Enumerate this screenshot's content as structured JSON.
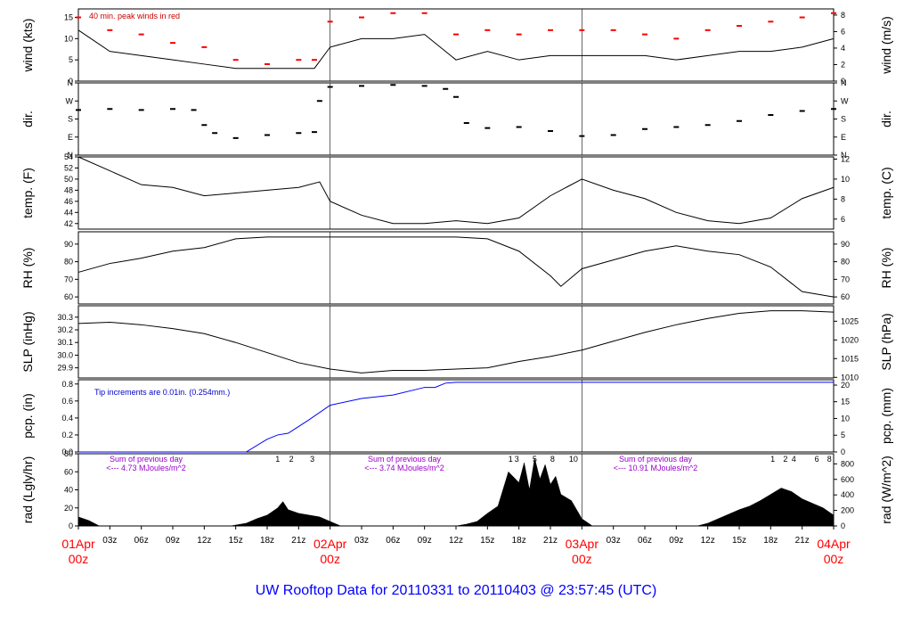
{
  "chart_data": {
    "type": "line",
    "title": "UW Rooftop Data for 20110331  to  20110403 @ 23:57:45  (UTC)",
    "x_range": [
      "2011-04-01T00:00Z",
      "2011-04-04T00:00Z"
    ],
    "x_hour_ticks": [
      "03z",
      "06z",
      "09z",
      "12z",
      "15z",
      "18z",
      "21z",
      "03z",
      "06z",
      "09z",
      "12z",
      "15z",
      "18z",
      "21z",
      "03z",
      "06z",
      "09z",
      "12z",
      "15z",
      "18z",
      "21z"
    ],
    "x_day_labels": [
      {
        "date": "01Apr",
        "time": "00z"
      },
      {
        "date": "02Apr",
        "time": "00z"
      },
      {
        "date": "03Apr",
        "time": "00z"
      },
      {
        "date": "04Apr",
        "time": "00z"
      }
    ],
    "panels": [
      {
        "id": "wind",
        "ylabel_left": "wind (kts)",
        "ylabel_right": "wind (m/s)",
        "ylim": [
          0,
          17
        ],
        "left_ticks": [
          "0",
          "5",
          "10",
          "15"
        ],
        "left_tick_values": [
          0,
          5,
          10,
          15
        ],
        "right_ticks": [
          "0",
          "2",
          "4",
          "6",
          "8"
        ],
        "right_tick_values_kts": [
          0,
          3.89,
          7.78,
          11.66,
          15.55
        ],
        "annotation": "40 min. peak winds in red",
        "series": [
          {
            "name": "wind",
            "hours": [
              0,
              3,
              6,
              9,
              12,
              15,
              18,
              21,
              22.5,
              24,
              27,
              30,
              33,
              36,
              39,
              42,
              45,
              48,
              51,
              54,
              57,
              60,
              63,
              66,
              69,
              72
            ],
            "values": [
              12,
              7,
              6,
              5,
              4,
              3,
              3,
              3,
              3,
              8,
              10,
              10,
              11,
              5,
              7,
              5,
              6,
              6,
              6,
              6,
              5,
              6,
              7,
              7,
              8,
              10
            ]
          },
          {
            "name": "40 min. peak winds",
            "hours": [
              0,
              3,
              6,
              9,
              12,
              15,
              18,
              21,
              22.5,
              24,
              27,
              30,
              33,
              36,
              39,
              42,
              45,
              48,
              51,
              54,
              57,
              60,
              63,
              66,
              69,
              72
            ],
            "values": [
              15,
              12,
              11,
              9,
              8,
              5,
              4,
              5,
              5,
              14,
              15,
              16,
              16,
              11,
              12,
              11,
              12,
              12,
              12,
              11,
              10,
              12,
              13,
              14,
              15,
              16
            ]
          }
        ]
      },
      {
        "id": "dir",
        "ylabel_left": "dir.",
        "ylabel_right": "dir.",
        "ylim": [
          0,
          360
        ],
        "left_ticks": [
          "N",
          "E",
          "S",
          "W",
          "N"
        ],
        "left_tick_values": [
          0,
          90,
          180,
          270,
          360
        ],
        "right_ticks": [
          "N",
          "E",
          "S",
          "W",
          "N"
        ],
        "right_tick_values": [
          0,
          90,
          180,
          270,
          360
        ],
        "series": [
          {
            "name": "wind direction",
            "hours": [
              0,
              3,
              6,
              9,
              11,
              12,
              13,
              15,
              18,
              21,
              22.5,
              23,
              24,
              27,
              30,
              33,
              35,
              36,
              37,
              39,
              42,
              45,
              48,
              51,
              54,
              57,
              60,
              63,
              66,
              69,
              72
            ],
            "values": [
              225,
              230,
              225,
              230,
              225,
              150,
              110,
              85,
              100,
              110,
              115,
              270,
              340,
              345,
              350,
              345,
              330,
              290,
              160,
              135,
              140,
              120,
              95,
              100,
              130,
              140,
              150,
              170,
              200,
              220,
              230
            ]
          }
        ]
      },
      {
        "id": "temp",
        "ylabel_left": "temp. (F)",
        "ylabel_right": "temp. (C)",
        "ylim": [
          41,
          54
        ],
        "left_ticks": [
          "42",
          "44",
          "46",
          "48",
          "50",
          "52",
          "54"
        ],
        "left_tick_values": [
          42,
          44,
          46,
          48,
          50,
          52,
          54
        ],
        "right_ticks": [
          "6",
          "8",
          "10",
          "12"
        ],
        "right_tick_values_f": [
          42.8,
          46.4,
          50,
          53.6
        ],
        "series": [
          {
            "name": "temperature",
            "hours": [
              0,
              3,
              6,
              9,
              12,
              15,
              18,
              21,
              23,
              24,
              27,
              30,
              33,
              36,
              39,
              42,
              45,
              48,
              51,
              54,
              57,
              60,
              63,
              66,
              69,
              72
            ],
            "values": [
              54,
              51.5,
              49,
              48.5,
              47,
              47.5,
              48,
              48.5,
              49.5,
              46,
              43.5,
              42,
              42,
              42.5,
              42,
              43,
              47,
              50,
              48,
              46.5,
              44,
              42.5,
              42,
              43,
              46.5,
              48.5
            ]
          }
        ]
      },
      {
        "id": "rh",
        "ylabel_left": "RH (%)",
        "ylabel_right": "RH (%)",
        "ylim": [
          56,
          97
        ],
        "left_ticks": [
          "60",
          "70",
          "80",
          "90"
        ],
        "left_tick_values": [
          60,
          70,
          80,
          90
        ],
        "right_ticks": [
          "60",
          "70",
          "80",
          "90"
        ],
        "right_tick_values": [
          60,
          70,
          80,
          90
        ],
        "series": [
          {
            "name": "relative humidity",
            "hours": [
              0,
              3,
              6,
              9,
              12,
              15,
              18,
              21,
              24,
              27,
              30,
              33,
              36,
              39,
              42,
              45,
              46,
              48,
              51,
              54,
              57,
              60,
              63,
              66,
              69,
              72
            ],
            "values": [
              74,
              79,
              82,
              86,
              88,
              93,
              94,
              94,
              94,
              94,
              94,
              94,
              94,
              93,
              86,
              72,
              66,
              76,
              81,
              86,
              89,
              86,
              84,
              77,
              63,
              60
            ]
          }
        ]
      },
      {
        "id": "slp",
        "ylabel_left": "SLP (inHg)",
        "ylabel_right": "SLP (hPa)",
        "ylim": [
          29.82,
          30.39
        ],
        "left_ticks": [
          "29.9",
          "30.0",
          "30.1",
          "30.2",
          "30.3"
        ],
        "left_tick_values": [
          29.9,
          30.0,
          30.1,
          30.2,
          30.3
        ],
        "right_ticks": [
          "1010",
          "1015",
          "1020",
          "1025"
        ],
        "right_tick_values_inhg": [
          29.825,
          29.973,
          30.12,
          30.268
        ],
        "series": [
          {
            "name": "sea level pressure",
            "hours": [
              0,
              3,
              6,
              9,
              12,
              15,
              18,
              21,
              24,
              27,
              30,
              33,
              36,
              39,
              42,
              45,
              48,
              51,
              54,
              57,
              60,
              63,
              66,
              69,
              72
            ],
            "values": [
              30.25,
              30.26,
              30.24,
              30.21,
              30.17,
              30.1,
              30.02,
              29.94,
              29.89,
              29.86,
              29.88,
              29.88,
              29.89,
              29.9,
              29.95,
              29.99,
              30.04,
              30.11,
              30.18,
              30.24,
              30.29,
              30.33,
              30.35,
              30.35,
              30.34
            ]
          }
        ]
      },
      {
        "id": "pcp",
        "ylabel_left": "pcp. (in)",
        "ylabel_right": "pcp. (mm)",
        "ylim": [
          0,
          0.85
        ],
        "left_ticks": [
          "0.0",
          "0.2",
          "0.4",
          "0.6",
          "0.8"
        ],
        "left_tick_values": [
          0,
          0.2,
          0.4,
          0.6,
          0.8
        ],
        "right_ticks": [
          "0",
          "5",
          "10",
          "15",
          "20"
        ],
        "right_tick_values_in": [
          0,
          0.197,
          0.394,
          0.591,
          0.787
        ],
        "annotation": "Tip increments are 0.01in. (0.254mm.)",
        "series": [
          {
            "name": "accumulated precipitation",
            "hours": [
              0,
              16,
              18,
              19,
              20,
              21,
              22,
              24,
              27,
              30,
              32,
              33,
              34,
              35,
              36,
              37,
              48,
              72
            ],
            "values": [
              0,
              0,
              0.15,
              0.2,
              0.22,
              0.3,
              0.38,
              0.55,
              0.63,
              0.67,
              0.73,
              0.76,
              0.76,
              0.81,
              0.82,
              0.82,
              0.82,
              0.82
            ]
          }
        ]
      },
      {
        "id": "rad",
        "ylabel_left": "rad (Lgly/hr)",
        "ylabel_right": "rad (W/m^2)",
        "ylim": [
          0,
          80
        ],
        "left_ticks": [
          "0",
          "20",
          "40",
          "60",
          "80"
        ],
        "left_tick_values": [
          0,
          20,
          40,
          60,
          80
        ],
        "right_ticks": [
          "0",
          "200",
          "400",
          "600",
          "800"
        ],
        "right_tick_values_lgly": [
          0,
          17.2,
          34.4,
          51.6,
          68.8
        ],
        "daily_sums": [
          {
            "line1": "Sum of previous day",
            "line2": "<--- 4.73 MJoules/m^2"
          },
          {
            "line1": "Sum of previous day",
            "line2": "<--- 3.74 MJoules/m^2"
          },
          {
            "line1": "Sum of previous day",
            "line2": "<--- 10.91 MJoules/m^2"
          }
        ],
        "hour_markers": [
          {
            "hour": 19,
            "label": "1"
          },
          {
            "hour": 20.3,
            "label": "2"
          },
          {
            "hour": 22.3,
            "label": "3"
          },
          {
            "hour": 41.2,
            "label": "1"
          },
          {
            "hour": 41.8,
            "label": "3"
          },
          {
            "hour": 43.5,
            "label": "5"
          },
          {
            "hour": 45.2,
            "label": "8"
          },
          {
            "hour": 47.2,
            "label": "10"
          },
          {
            "hour": 66.2,
            "label": "1"
          },
          {
            "hour": 67.4,
            "label": "2"
          },
          {
            "hour": 68.2,
            "label": "4"
          },
          {
            "hour": 70.4,
            "label": "6"
          },
          {
            "hour": 71.6,
            "label": "8"
          }
        ],
        "series": [
          {
            "name": "solar radiation",
            "hours": [
              0,
              1,
              2,
              14.5,
              16,
              17,
              18,
              19,
              19.5,
              20,
              21,
              22,
              23,
              24,
              25,
              36,
              37,
              38,
              39,
              40,
              41,
              42,
              42.5,
              43,
              43.5,
              44,
              44.5,
              45,
              45.5,
              46,
              47,
              48,
              49,
              59,
              60,
              61,
              63,
              64,
              65,
              66,
              67,
              68,
              69,
              70,
              71,
              72
            ],
            "values": [
              10,
              6,
              0,
              0,
              3,
              8,
              12,
              20,
              27,
              18,
              14,
              12,
              10,
              5,
              0,
              0,
              2,
              5,
              14,
              22,
              60,
              48,
              70,
              40,
              75,
              52,
              68,
              46,
              55,
              35,
              28,
              8,
              0,
              0,
              3,
              8,
              18,
              22,
              28,
              35,
              42,
              38,
              30,
              25,
              20,
              12
            ]
          }
        ]
      }
    ]
  }
}
